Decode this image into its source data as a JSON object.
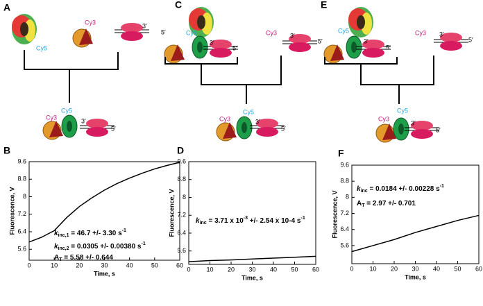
{
  "diagrams": [
    {
      "panel": "A",
      "labels": [
        "Cy5",
        "Cy3",
        "3′",
        "5′",
        "Cy5",
        "Cy3",
        "3′",
        "5′"
      ]
    },
    {
      "panel": "C",
      "labels": [
        "Cy5",
        "3′",
        "5′",
        "Cy3",
        "3′",
        "5′",
        "Cy5",
        "Cy3",
        "3′",
        "5′"
      ]
    },
    {
      "panel": "E",
      "labels": [
        "Cy5",
        "3′",
        "5′",
        "Cy3",
        "3′",
        "5′",
        "Cy5",
        "Cy3",
        "3′",
        "5′"
      ]
    }
  ],
  "chart_data": [
    {
      "type": "line",
      "panel": "B",
      "xlabel": "Time, s",
      "ylabel": "Fluorescence, V",
      "color": "#000000",
      "x": [
        0,
        5,
        10,
        15,
        20,
        25,
        30,
        35,
        40,
        45,
        50,
        55,
        60
      ],
      "values": [
        5.93,
        6.15,
        6.45,
        7.05,
        7.55,
        7.95,
        8.3,
        8.6,
        8.85,
        9.07,
        9.27,
        9.43,
        9.57
      ],
      "xlim": [
        0,
        60
      ],
      "xticks": [
        0,
        10,
        20,
        30,
        40,
        50,
        60
      ],
      "ylim": [
        5.1,
        9.6
      ],
      "yticks": [
        5.6,
        6.4,
        7.2,
        8,
        8.8,
        9.6
      ],
      "annotations": [
        [
          {
            "text": "k",
            "style": "italic"
          },
          {
            "text": "inc,1",
            "style": "sub"
          },
          {
            "text": " = 46.7 +/- 3.30 s"
          },
          {
            "text": "-1",
            "style": "sup"
          }
        ],
        [
          {
            "text": "k",
            "style": "italic"
          },
          {
            "text": "inc,2",
            "style": "sub"
          },
          {
            "text": " = 0.0305 +/- 0.00380 s"
          },
          {
            "text": "-1",
            "style": "sup"
          }
        ],
        [
          {
            "text": "A"
          },
          {
            "text": "T",
            "style": "sub"
          },
          {
            "text": " = 5.58 +/- 0.644"
          }
        ]
      ]
    },
    {
      "type": "line",
      "panel": "D",
      "xlabel": "Time, s",
      "ylabel": "Fluorescence, V",
      "color": "#000000",
      "x": [
        0,
        10,
        20,
        30,
        40,
        50,
        60
      ],
      "values": [
        5.12,
        5.17,
        5.2,
        5.24,
        5.28,
        5.32,
        5.36
      ],
      "xlim": [
        0,
        60
      ],
      "xticks": [
        0,
        10,
        20,
        30,
        40,
        50,
        60
      ],
      "ylim": [
        5.0,
        9.6
      ],
      "yticks": [
        5.6,
        6.4,
        7.2,
        8,
        8.8,
        9.6
      ],
      "annotations": [
        [
          {
            "text": "k",
            "style": "italic"
          },
          {
            "text": "inc",
            "style": "sub"
          },
          {
            "text": " = 3.71 x 10"
          },
          {
            "text": "-3",
            "style": "sup"
          },
          {
            "text": " +/- 2.54 x 10-4 s"
          },
          {
            "text": "-1",
            "style": "sup"
          }
        ]
      ]
    },
    {
      "type": "line",
      "panel": "F",
      "xlabel": "Time, s",
      "ylabel": "Fluorescence, V",
      "color": "#000000",
      "x": [
        0,
        10,
        20,
        30,
        40,
        50,
        60
      ],
      "values": [
        5.3,
        5.6,
        5.9,
        6.25,
        6.55,
        6.85,
        7.1
      ],
      "xlim": [
        0,
        60
      ],
      "xticks": [
        0,
        10,
        20,
        30,
        40,
        50,
        60
      ],
      "ylim": [
        4.7,
        9.6
      ],
      "yticks": [
        5.6,
        6.4,
        7.2,
        8,
        8.8,
        9.6
      ],
      "annotations": [
        [
          {
            "text": "k",
            "style": "italic"
          },
          {
            "text": "inc",
            "style": "sub"
          },
          {
            "text": " = 0.0184 +/- 0.00228 s"
          },
          {
            "text": "-1",
            "style": "sup"
          }
        ],
        [
          {
            "text": "A"
          },
          {
            "text": "T",
            "style": "sub"
          },
          {
            "text": " = 2.97 +/- 0.701"
          }
        ]
      ]
    }
  ]
}
